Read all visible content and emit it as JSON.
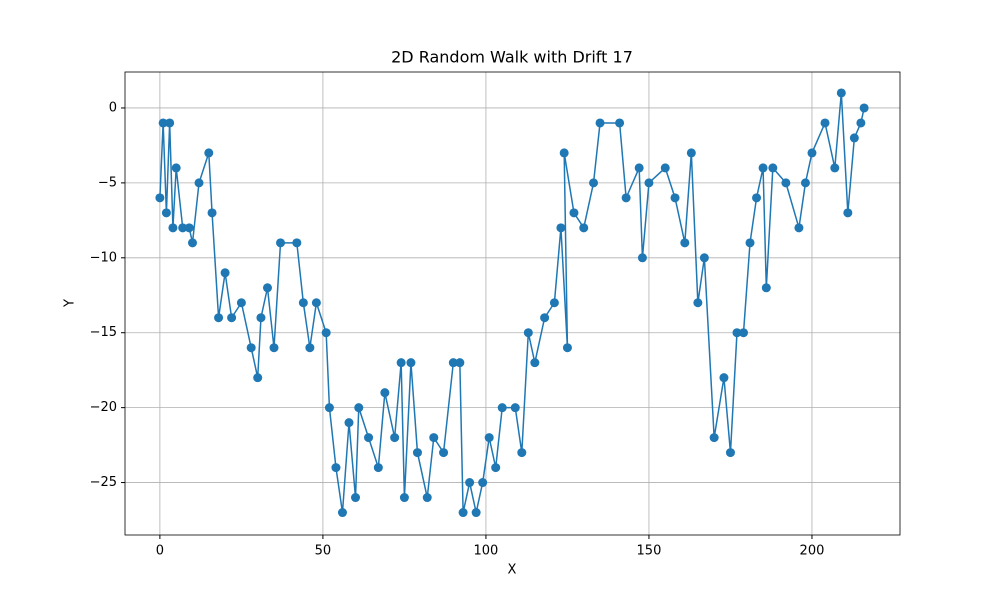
{
  "chart_data": {
    "type": "line",
    "title": "2D Random Walk with Drift 17",
    "x_label": "X",
    "y_label": "Y",
    "x": [
      0,
      1,
      2,
      3,
      4,
      5,
      7,
      9,
      10,
      12,
      15,
      16,
      18,
      20,
      22,
      25,
      28,
      30,
      31,
      33,
      35,
      37,
      42,
      44,
      46,
      48,
      51,
      52,
      54,
      56,
      58,
      60,
      61,
      64,
      67,
      69,
      72,
      74,
      75,
      77,
      79,
      82,
      84,
      87,
      90,
      92,
      93,
      95,
      97,
      99,
      101,
      103,
      105,
      109,
      111,
      113,
      115,
      118,
      121,
      123,
      125,
      124,
      127,
      130,
      133,
      135,
      141,
      143,
      147,
      148,
      150,
      155,
      158,
      161,
      163,
      165,
      167,
      170,
      173,
      175,
      177,
      179,
      181,
      183,
      185,
      186,
      188,
      192,
      196,
      198,
      200,
      204,
      207,
      209,
      211,
      213,
      215,
      216
    ],
    "values": [
      -6,
      -1,
      -7,
      -1,
      -8,
      -4,
      -8,
      -8,
      -9,
      -5,
      -3,
      -7,
      -14,
      -11,
      -14,
      -13,
      -16,
      -18,
      -14,
      -12,
      -16,
      -9,
      -9,
      -13,
      -16,
      -13,
      -15,
      -20,
      -24,
      -27,
      -21,
      -26,
      -20,
      -22,
      -24,
      -19,
      -22,
      -17,
      -26,
      -17,
      -23,
      -26,
      -22,
      -23,
      -17,
      -17,
      -27,
      -25,
      -27,
      -25,
      -22,
      -24,
      -20,
      -20,
      -23,
      -15,
      -17,
      -14,
      -13,
      -8,
      -16,
      -3,
      -7,
      -8,
      -5,
      -1,
      -1,
      -6,
      -4,
      -10,
      -5,
      -4,
      -6,
      -9,
      -3,
      -13,
      -10,
      -22,
      -18,
      -23,
      -15,
      -15,
      -9,
      -6,
      -4,
      -12,
      -4,
      -5,
      -8,
      -5,
      -3,
      -1,
      -4,
      1,
      -7,
      -2,
      -1,
      0
    ],
    "color": "#1f77b4",
    "marker": "circle",
    "xlim": [
      -10.7,
      227
    ],
    "ylim": [
      -28.5,
      2.4
    ],
    "xticks": [
      0,
      50,
      100,
      150,
      200
    ],
    "yticks": [
      {
        "value": -25,
        "label": "−25"
      },
      {
        "value": -20,
        "label": "−20"
      },
      {
        "value": -15,
        "label": "−15"
      },
      {
        "value": -10,
        "label": "−10"
      },
      {
        "value": -5,
        "label": "−5"
      },
      0
    ],
    "grid": true
  }
}
